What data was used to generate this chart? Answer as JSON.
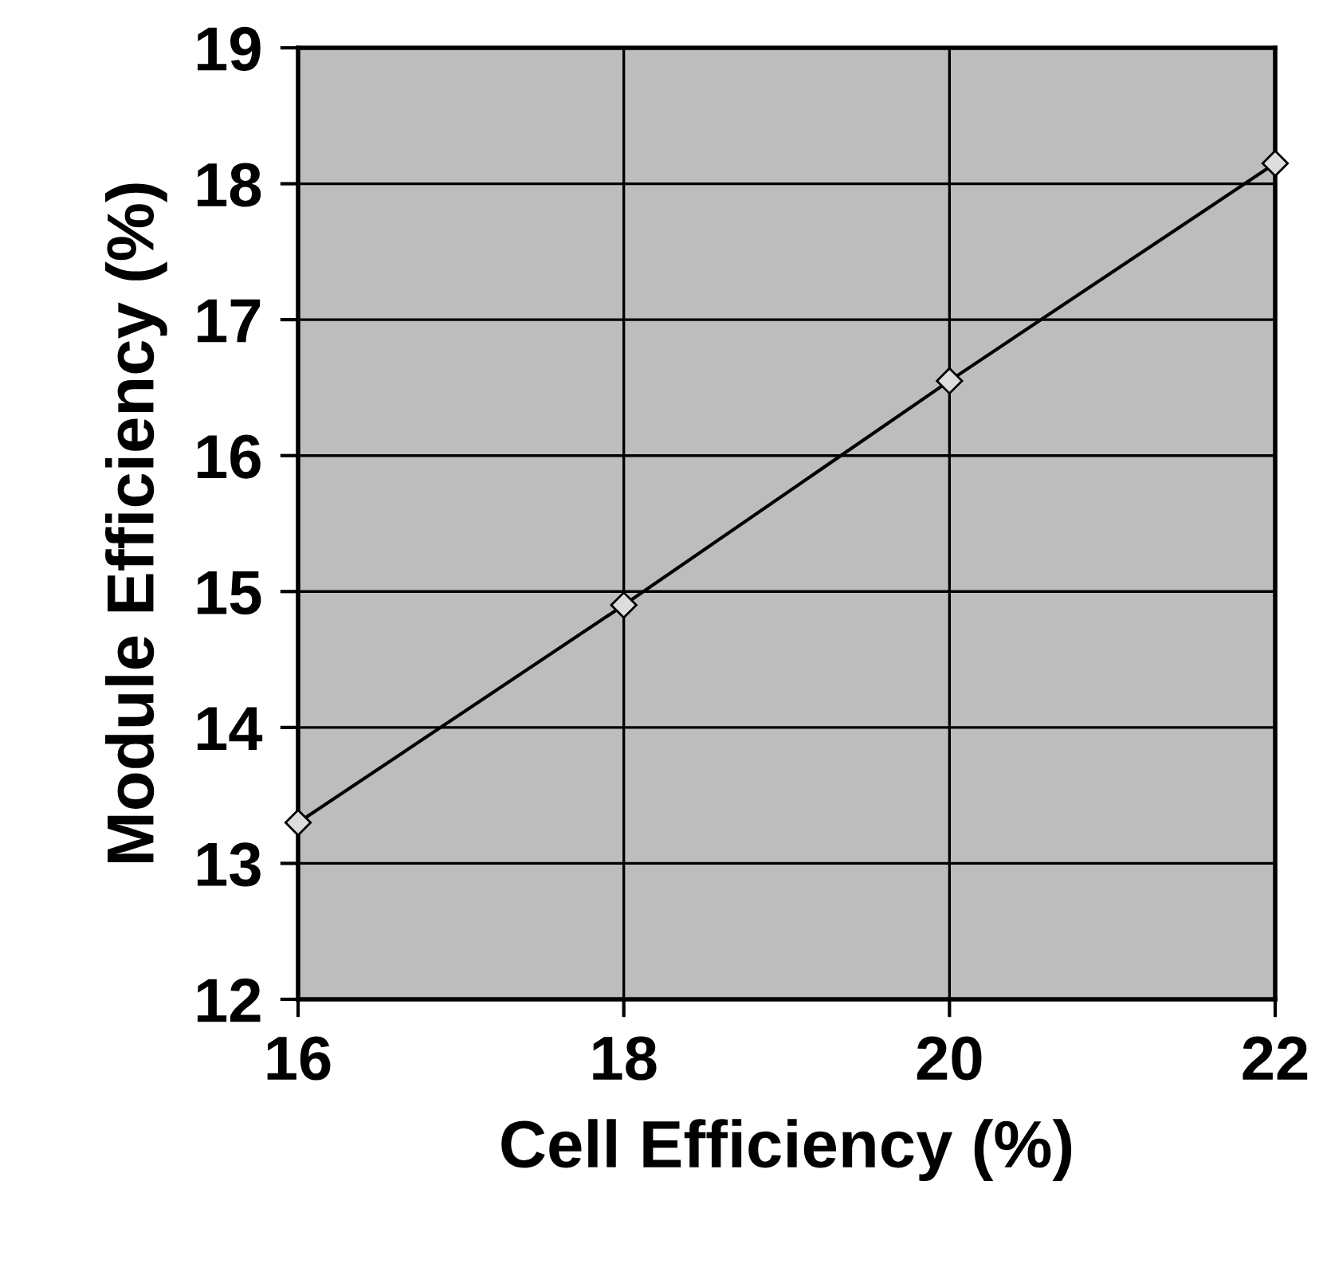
{
  "chart_data": {
    "type": "line",
    "xlabel": "Cell Efficiency (%)",
    "ylabel": "Module Efficiency (%)",
    "x": [
      16,
      18,
      20,
      22
    ],
    "series": [
      {
        "color": "#000000",
        "values": [
          13.3,
          14.9,
          16.55,
          18.15
        ]
      }
    ],
    "xlim": [
      16,
      22
    ],
    "ylim": [
      12,
      19
    ],
    "xticks": [
      16,
      18,
      20,
      22
    ],
    "yticks": [
      12,
      13,
      14,
      15,
      16,
      17,
      18,
      19
    ],
    "grid": true,
    "marker": "diamond",
    "line_style": "solid"
  }
}
